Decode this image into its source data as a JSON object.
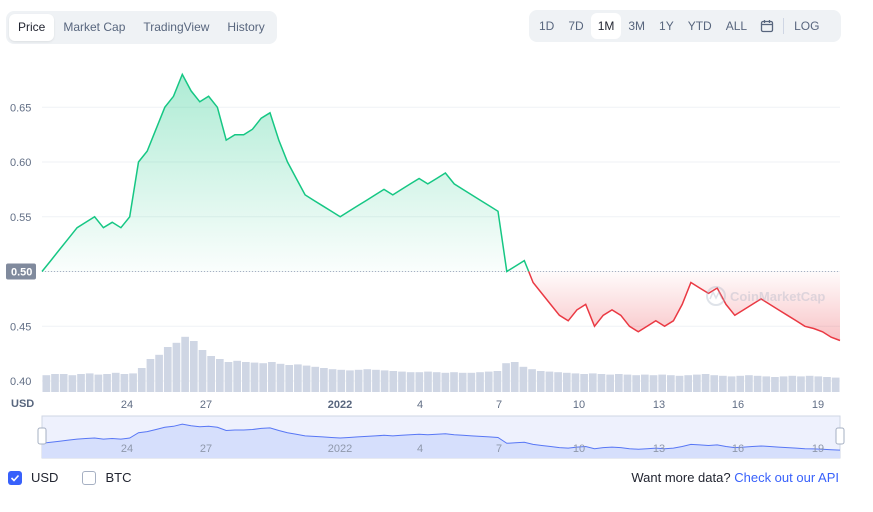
{
  "tabs_left": [
    "Price",
    "Market Cap",
    "TradingView",
    "History"
  ],
  "tabs_right": [
    "1D",
    "7D",
    "1M",
    "3M",
    "1Y",
    "YTD",
    "ALL"
  ],
  "log_label": "LOG",
  "currency_label": "USD",
  "current_price_label": "0.50",
  "watermark": "CoinMarketCap",
  "footer": {
    "usd": "USD",
    "btc": "BTC",
    "want_more": "Want more data?",
    "api_link": "Check out our API"
  },
  "colors": {
    "up": "#16c784",
    "down": "#ea3943",
    "accent": "#3861fb",
    "volume": "#cfd6e4"
  },
  "chart_data": {
    "type": "line",
    "y_ticks": [
      "0.40",
      "0.45",
      "0.50",
      "0.55",
      "0.60",
      "0.65"
    ],
    "ylim": [
      0.39,
      0.695
    ],
    "x_ticks": [
      "24",
      "27",
      "2022",
      "4",
      "7",
      "10",
      "13",
      "16",
      "19"
    ],
    "baseline": 0.5,
    "series": [
      {
        "values": [
          0.5,
          0.51,
          0.52,
          0.53,
          0.54,
          0.545,
          0.55,
          0.54,
          0.545,
          0.54,
          0.55,
          0.6,
          0.61,
          0.63,
          0.65,
          0.66,
          0.68,
          0.665,
          0.655,
          0.66,
          0.65,
          0.62,
          0.625,
          0.625,
          0.63,
          0.64,
          0.645,
          0.62,
          0.6,
          0.585,
          0.57,
          0.565,
          0.56,
          0.555,
          0.55,
          0.555,
          0.56,
          0.565,
          0.57,
          0.575,
          0.57,
          0.575,
          0.58,
          0.585,
          0.58,
          0.585,
          0.59,
          0.58,
          0.575,
          0.57,
          0.565,
          0.56,
          0.555,
          0.5,
          0.505,
          0.51,
          0.49,
          0.48,
          0.47,
          0.46,
          0.455,
          0.465,
          0.47,
          0.45,
          0.46,
          0.465,
          0.46,
          0.45,
          0.445,
          0.45,
          0.455,
          0.45,
          0.455,
          0.47,
          0.49,
          0.485,
          0.48,
          0.485,
          0.47,
          0.46,
          0.465,
          0.47,
          0.475,
          0.47,
          0.465,
          0.46,
          0.455,
          0.45,
          0.448,
          0.445,
          0.44,
          0.437
        ]
      }
    ],
    "volume": [
      0.28,
      0.3,
      0.3,
      0.28,
      0.3,
      0.31,
      0.29,
      0.3,
      0.32,
      0.3,
      0.31,
      0.4,
      0.55,
      0.62,
      0.75,
      0.82,
      0.92,
      0.85,
      0.7,
      0.6,
      0.55,
      0.5,
      0.52,
      0.5,
      0.49,
      0.48,
      0.5,
      0.47,
      0.45,
      0.46,
      0.44,
      0.42,
      0.4,
      0.38,
      0.37,
      0.36,
      0.37,
      0.38,
      0.37,
      0.36,
      0.35,
      0.34,
      0.33,
      0.33,
      0.34,
      0.33,
      0.32,
      0.33,
      0.32,
      0.32,
      0.33,
      0.34,
      0.35,
      0.48,
      0.5,
      0.42,
      0.38,
      0.35,
      0.34,
      0.33,
      0.32,
      0.31,
      0.3,
      0.31,
      0.3,
      0.29,
      0.3,
      0.29,
      0.28,
      0.29,
      0.28,
      0.29,
      0.28,
      0.27,
      0.28,
      0.29,
      0.3,
      0.28,
      0.27,
      0.26,
      0.27,
      0.28,
      0.27,
      0.26,
      0.25,
      0.26,
      0.27,
      0.26,
      0.27,
      0.26,
      0.25,
      0.24
    ]
  }
}
